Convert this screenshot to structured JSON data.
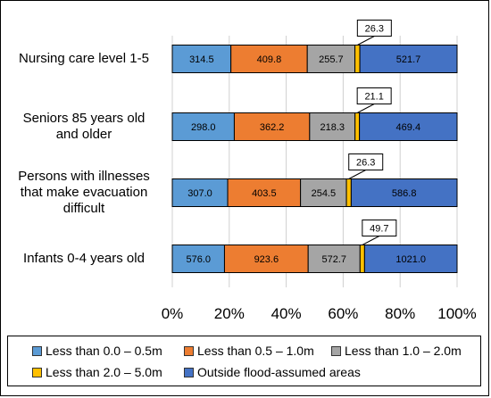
{
  "chart_data": {
    "type": "bar",
    "orientation": "horizontal",
    "stacked": true,
    "normalized": true,
    "categories": [
      "Nursing care level 1-5",
      "Seniors 85 years old and older",
      "Persons with illnesses that make evacuation difficult",
      "Infants 0-4 years old"
    ],
    "category_lines": [
      [
        "Nursing care level 1-5"
      ],
      [
        "Seniors 85 years old",
        "and older"
      ],
      [
        "Persons with illnesses",
        "that make evacuation",
        "difficult"
      ],
      [
        "Infants 0-4 years old"
      ]
    ],
    "series": [
      {
        "name": "Less than 0.0 – 0.5m",
        "color": "#5b9bd5",
        "values": [
          314.5,
          298.0,
          307.0,
          576.0
        ],
        "labels": [
          "314.5",
          "298.0",
          "307.0",
          "576.0"
        ]
      },
      {
        "name": "Less than 0.5 – 1.0m",
        "color": "#ed7d31",
        "values": [
          409.8,
          362.2,
          403.5,
          923.6
        ],
        "labels": [
          "409.8",
          "362.2",
          "403.5",
          "923.6"
        ]
      },
      {
        "name": "Less than 1.0 – 2.0m",
        "color": "#a5a5a5",
        "values": [
          255.7,
          218.3,
          254.5,
          572.7
        ],
        "labels": [
          "255.7",
          "218.3",
          "254.5",
          "572.7"
        ]
      },
      {
        "name": "Less than 2.0 – 5.0m",
        "color": "#ffc000",
        "values": [
          26.3,
          21.1,
          26.3,
          49.7
        ],
        "labels": [
          "26.3",
          "21.1",
          "26.3",
          "49.7"
        ]
      },
      {
        "name": "Outside flood-assumed areas",
        "color": "#4472c4",
        "values": [
          521.7,
          469.4,
          586.8,
          1021.0
        ],
        "labels": [
          "521.7",
          "469.4",
          "586.8",
          "1021.0"
        ]
      }
    ],
    "callout_series_index": 3,
    "xlim": [
      0,
      100
    ],
    "x_ticks": [
      "0%",
      "20%",
      "40%",
      "60%",
      "80%",
      "100%"
    ],
    "grid": true,
    "legend_position": "bottom",
    "title": "",
    "xlabel": "",
    "ylabel": ""
  }
}
